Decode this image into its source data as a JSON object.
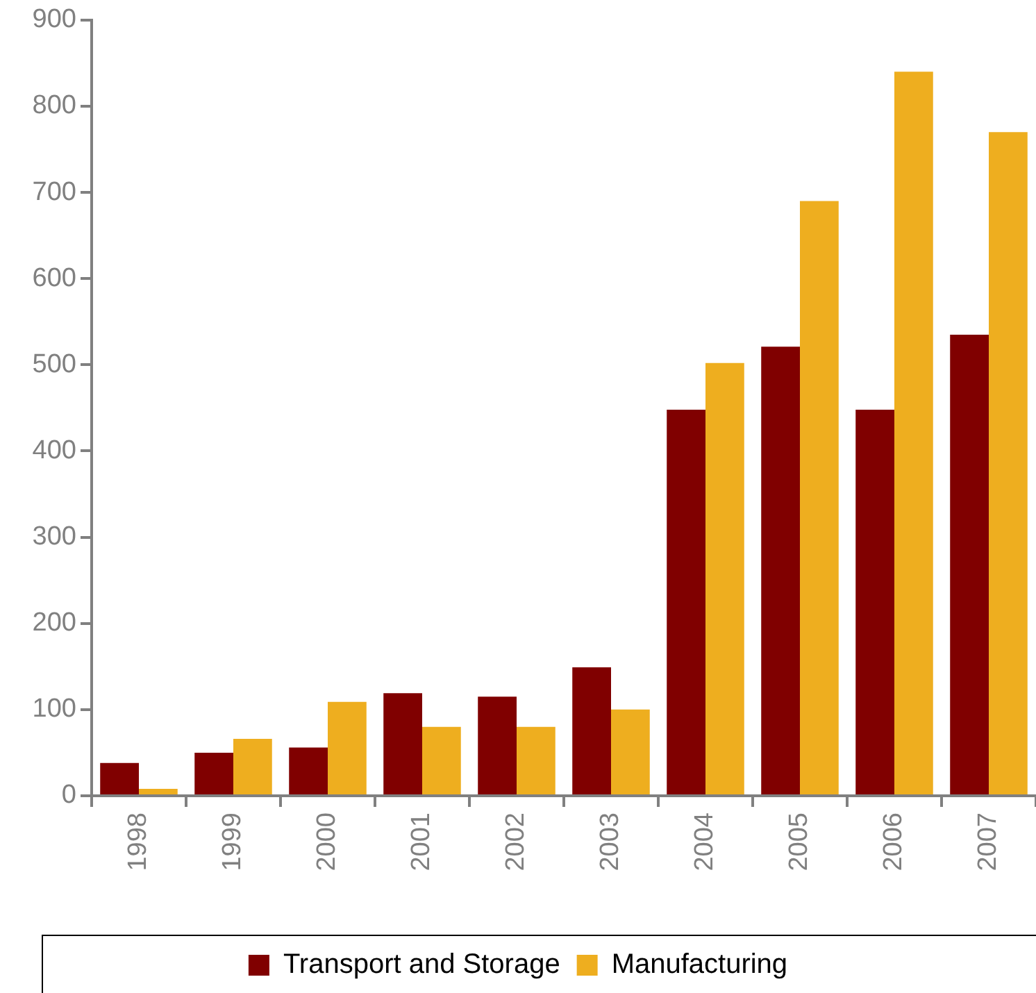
{
  "chart_data": {
    "type": "bar",
    "categories": [
      "1998",
      "1999",
      "2000",
      "2001",
      "2002",
      "2003",
      "2004",
      "2005",
      "2006",
      "2007"
    ],
    "series": [
      {
        "name": "Transport and Storage",
        "color": "#800000",
        "values": [
          38,
          50,
          56,
          119,
          115,
          149,
          448,
          521,
          448,
          535
        ]
      },
      {
        "name": "Manufacturing",
        "color": "#eeae1f",
        "values": [
          8,
          66,
          109,
          80,
          80,
          100,
          502,
          690,
          840,
          770
        ]
      }
    ],
    "ylim": [
      0,
      900
    ],
    "yticks": [
      0,
      100,
      200,
      300,
      400,
      500,
      600,
      700,
      800,
      900
    ],
    "grid": false,
    "legend": "bottom"
  }
}
